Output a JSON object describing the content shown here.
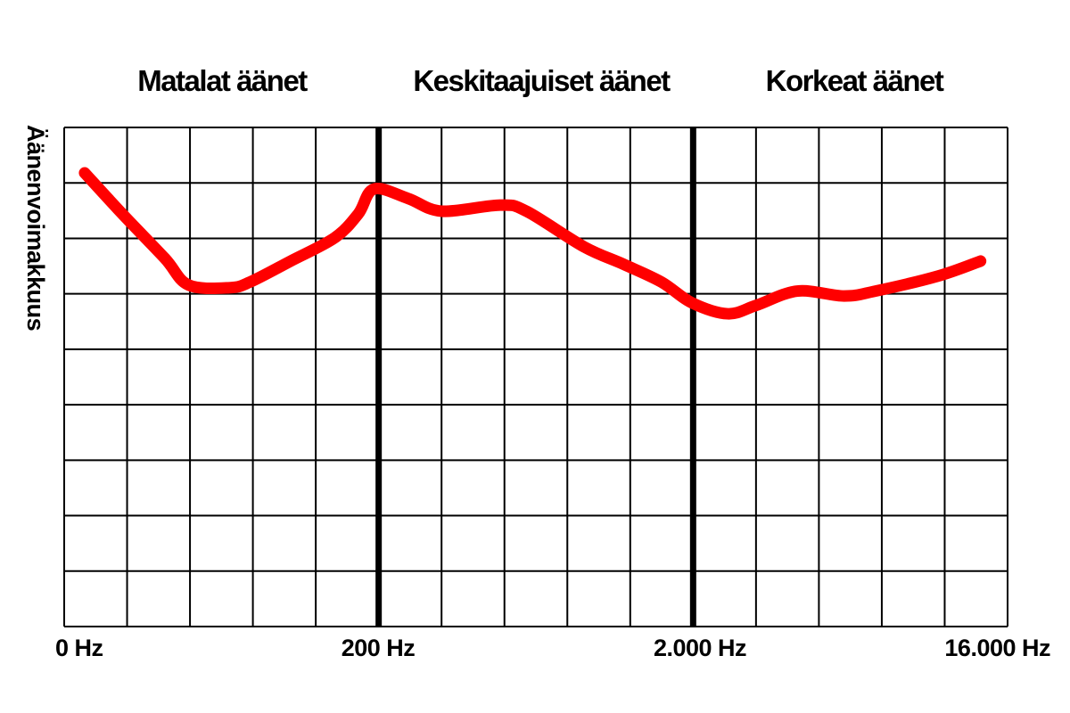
{
  "chart_data": {
    "type": "line",
    "title": "",
    "ylabel": "Äänenvoimakkuus",
    "xlabel": "",
    "band_labels": [
      "Matalat äänet",
      "Keskitaajuiset äänet",
      "Korkeat äänet"
    ],
    "x_tick_labels": [
      "0 Hz",
      "200 Hz",
      "2.000 Hz",
      "16.000 Hz"
    ],
    "x_ticks_hz": [
      0,
      200,
      2000,
      16000
    ],
    "x_scale": "piecewise (0–200 linear, 200–16000 logarithmic)",
    "ylim": [
      0,
      9
    ],
    "grid": true,
    "band_divider_color": "#000000",
    "series": [
      {
        "color": "#ff0000",
        "points": [
          [
            13,
            8.18
          ],
          [
            37,
            7.44
          ],
          [
            64,
            6.64
          ],
          [
            79,
            6.16
          ],
          [
            105,
            6.11
          ],
          [
            118,
            6.21
          ],
          [
            144,
            6.59
          ],
          [
            172,
            7.01
          ],
          [
            187,
            7.44
          ],
          [
            197,
            7.89
          ],
          [
            248,
            7.72
          ],
          [
            317,
            7.49
          ],
          [
            487,
            7.6
          ],
          [
            590,
            7.49
          ],
          [
            898,
            6.85
          ],
          [
            1205,
            6.53
          ],
          [
            1589,
            6.21
          ],
          [
            1978,
            5.84
          ],
          [
            2514,
            5.64
          ],
          [
            3031,
            5.79
          ],
          [
            3990,
            6.05
          ],
          [
            5426,
            5.96
          ],
          [
            6686,
            6.05
          ],
          [
            10101,
            6.32
          ],
          [
            13380,
            6.59
          ]
        ]
      }
    ]
  }
}
